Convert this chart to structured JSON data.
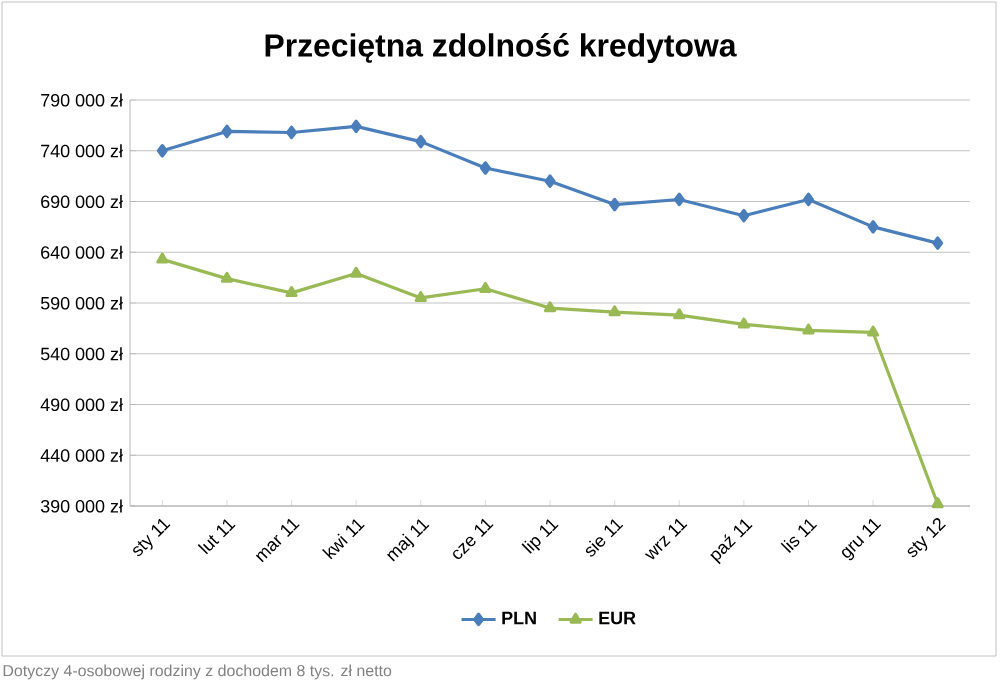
{
  "chart_data": {
    "type": "line",
    "title": "Przeciętna zdolność kredytowa",
    "categories": [
      "sty 11",
      "lut 11",
      "mar 11",
      "kwi 11",
      "maj 11",
      "cze 11",
      "lip 11",
      "sie 11",
      "wrz 11",
      "paź 11",
      "lis 11",
      "gru 11",
      "sty 12"
    ],
    "series": [
      {
        "name": "PLN",
        "color": "#4a7ebb",
        "marker": "diamond",
        "values": [
          740000,
          759000,
          758000,
          764000,
          749000,
          723000,
          710000,
          687000,
          692000,
          676000,
          692000,
          665000,
          649000
        ]
      },
      {
        "name": "EUR",
        "color": "#98b954",
        "marker": "triangle",
        "values": [
          633000,
          614000,
          600000,
          619000,
          595000,
          604000,
          585000,
          581000,
          578000,
          569000,
          563000,
          561000,
          392000
        ]
      }
    ],
    "ylim": [
      390000,
      790000
    ],
    "yticks": [
      {
        "value": 390000,
        "label": "390 000 zł"
      },
      {
        "value": 440000,
        "label": "440 000 zł"
      },
      {
        "value": 490000,
        "label": "490 000 zł"
      },
      {
        "value": 540000,
        "label": "540 000 zł"
      },
      {
        "value": 590000,
        "label": "590 000 zł"
      },
      {
        "value": 640000,
        "label": "640 000 zł"
      },
      {
        "value": 690000,
        "label": "690 000 zł"
      },
      {
        "value": 740000,
        "label": "740 000 zł"
      },
      {
        "value": 790000,
        "label": "790 000 zł"
      }
    ],
    "grid": "y",
    "legend": "bottom",
    "line_style": "solid",
    "annotations": [
      "Dotyczy 4-osobowej rodziny z dochodem 8 tys. zł netto"
    ]
  }
}
